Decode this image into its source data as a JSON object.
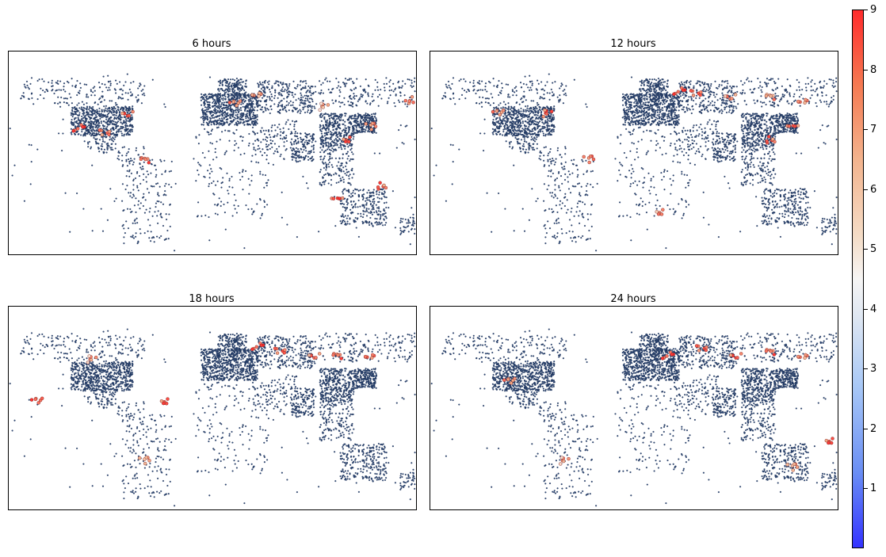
{
  "chart_data": [
    {
      "type": "scatter",
      "title": "6 hours",
      "description_of_marks": "station markers over world land areas; most stations dark blue (low values), a few red/orange (high values)",
      "highlight_points": [
        {
          "lon": -118,
          "lat": 34,
          "value": 9
        },
        {
          "lon": -95,
          "lat": 30,
          "value": 8.5
        },
        {
          "lon": -75,
          "lat": 45,
          "value": 9
        },
        {
          "lon": -60,
          "lat": 10,
          "value": 9
        },
        {
          "lon": 40,
          "lat": 60,
          "value": 8
        },
        {
          "lon": 20,
          "lat": 52,
          "value": 8
        },
        {
          "lon": 100,
          "lat": 50,
          "value": 7
        },
        {
          "lon": 140,
          "lat": 35,
          "value": 8.5
        },
        {
          "lon": 121,
          "lat": 25,
          "value": 9
        },
        {
          "lon": 150,
          "lat": -10,
          "value": 9
        },
        {
          "lon": 110,
          "lat": -20,
          "value": 9
        },
        {
          "lon": 175,
          "lat": 55,
          "value": 9
        }
      ]
    },
    {
      "type": "scatter",
      "title": "12 hours",
      "description_of_marks": "station markers; red cluster over northern Russia, orange markers across Siberia and western North America",
      "highlight_points": [
        {
          "lon": 40,
          "lat": 62,
          "value": 9
        },
        {
          "lon": 55,
          "lat": 60,
          "value": 9
        },
        {
          "lon": 85,
          "lat": 58,
          "value": 8
        },
        {
          "lon": 120,
          "lat": 58,
          "value": 8
        },
        {
          "lon": 150,
          "lat": 55,
          "value": 8.5
        },
        {
          "lon": -120,
          "lat": 45,
          "value": 8
        },
        {
          "lon": -75,
          "lat": 45,
          "value": 9
        },
        {
          "lon": -40,
          "lat": 10,
          "value": 9
        },
        {
          "lon": 25,
          "lat": -30,
          "value": 8
        },
        {
          "lon": 121,
          "lat": 25,
          "value": 9
        },
        {
          "lon": 140,
          "lat": 35,
          "value": 8.5
        }
      ]
    },
    {
      "type": "scatter",
      "title": "18 hours",
      "description_of_marks": "station markers; many red markers over Russia and Siberia, orange in North America and South America",
      "highlight_points": [
        {
          "lon": 40,
          "lat": 62,
          "value": 9
        },
        {
          "lon": 60,
          "lat": 58,
          "value": 9
        },
        {
          "lon": 90,
          "lat": 55,
          "value": 8.5
        },
        {
          "lon": 110,
          "lat": 55,
          "value": 9
        },
        {
          "lon": 140,
          "lat": 55,
          "value": 9
        },
        {
          "lon": -155,
          "lat": 20,
          "value": 9
        },
        {
          "lon": -105,
          "lat": 52,
          "value": 7.5
        },
        {
          "lon": -60,
          "lat": -25,
          "value": 8
        },
        {
          "lon": -40,
          "lat": 20,
          "value": 9
        }
      ]
    },
    {
      "type": "scatter",
      "title": "24 hours",
      "description_of_marks": "station markers; widespread red and orange markers across Europe, Russia, Siberia, plus patches in Americas and Australia",
      "highlight_points": [
        {
          "lon": 30,
          "lat": 55,
          "value": 9
        },
        {
          "lon": 60,
          "lat": 60,
          "value": 9
        },
        {
          "lon": 90,
          "lat": 55,
          "value": 9
        },
        {
          "lon": 120,
          "lat": 58,
          "value": 9
        },
        {
          "lon": 150,
          "lat": 55,
          "value": 8.5
        },
        {
          "lon": -110,
          "lat": 35,
          "value": 8
        },
        {
          "lon": -60,
          "lat": -25,
          "value": 7.5
        },
        {
          "lon": 140,
          "lat": -30,
          "value": 8
        },
        {
          "lon": 175,
          "lat": -10,
          "value": 9
        }
      ]
    }
  ],
  "colorbar": {
    "min": 0,
    "max": 9,
    "ticks": [
      "1",
      "2",
      "3",
      "4",
      "5",
      "6",
      "7",
      "8",
      "9"
    ],
    "colormap": "blue-white-red",
    "low_color": "#3333ff",
    "mid_color": "#f6f5f4",
    "high_color": "#ff2b2b"
  },
  "colors": {
    "station_default": "#2c4a7c",
    "station_edge": "#1b2a48"
  }
}
